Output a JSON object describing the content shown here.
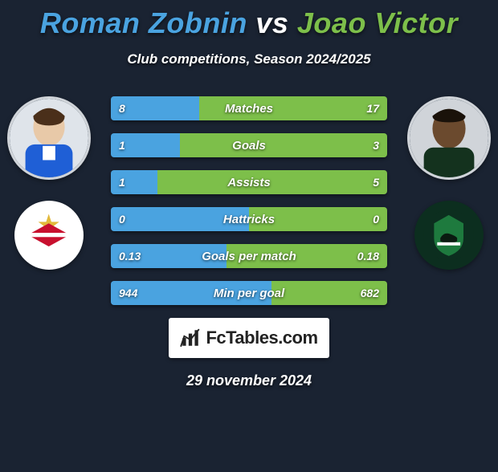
{
  "theme": {
    "background": "#1a2332",
    "text": "#ffffff",
    "avatar_border": "#d0d4d9"
  },
  "header": {
    "player1": "Roman Zobnin",
    "vs": "vs",
    "player2": "Joao Victor",
    "player1_color": "#4aa3e0",
    "player2_color": "#7dbf4a",
    "vs_color": "#ffffff",
    "subtitle": "Club competitions, Season 2024/2025"
  },
  "left": {
    "player_icon": "player-1",
    "club_name": "spartak-moscow",
    "club_bg": "#ffffff",
    "club_primary": "#c8102e"
  },
  "right": {
    "player_icon": "player-2",
    "club_name": "krasnodar",
    "club_bg": "#0c2e1f",
    "club_primary": "#1e7a3e"
  },
  "bars": {
    "left_color": "#4aa3e0",
    "right_color": "#7dbf4a",
    "height": 30,
    "gap": 16,
    "rows": [
      {
        "label": "Matches",
        "l": "8",
        "r": "17",
        "left_pct": 32
      },
      {
        "label": "Goals",
        "l": "1",
        "r": "3",
        "left_pct": 25
      },
      {
        "label": "Assists",
        "l": "1",
        "r": "5",
        "left_pct": 17
      },
      {
        "label": "Hattricks",
        "l": "0",
        "r": "0",
        "left_pct": 50
      },
      {
        "label": "Goals per match",
        "l": "0.13",
        "r": "0.18",
        "left_pct": 42
      },
      {
        "label": "Min per goal",
        "l": "944",
        "r": "682",
        "left_pct": 58
      }
    ]
  },
  "footer": {
    "logo_text": "FcTables.com",
    "date": "29 november 2024"
  }
}
